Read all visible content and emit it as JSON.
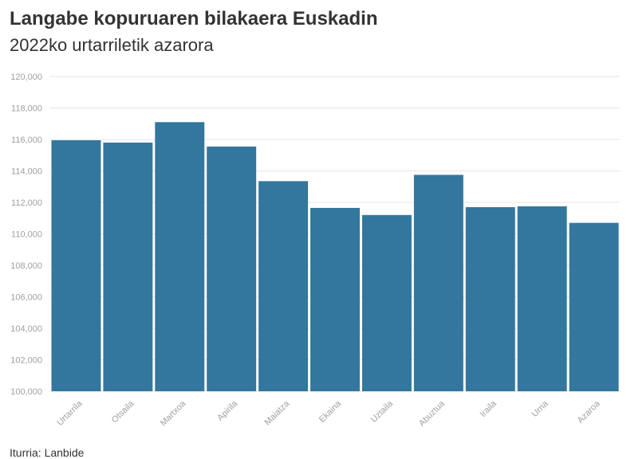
{
  "title": "Langabe kopuruaren bilakaera Euskadin",
  "subtitle": "2022ko urtarriletik azarora",
  "source": "Iturria: Lanbide",
  "colors": {
    "bar": "#33769e",
    "grid": "#e6e6e6",
    "tick": "#a0a0a0"
  },
  "chart_data": {
    "type": "bar",
    "title": "Langabe kopuruaren bilakaera Euskadin",
    "subtitle": "2022ko urtarriletik azarora",
    "xlabel": "",
    "ylabel": "",
    "ylim": [
      100000,
      120000
    ],
    "yticks": [
      100000,
      102000,
      104000,
      106000,
      108000,
      110000,
      112000,
      114000,
      116000,
      118000,
      120000
    ],
    "grid": true,
    "categories": [
      "Urtarrila",
      "Otsaila",
      "Martxoa",
      "Apirila",
      "Maiatza",
      "Ekaina",
      "Uztaila",
      "Abuztua",
      "Iraila",
      "Urria",
      "Azaroa"
    ],
    "values": [
      115950,
      115800,
      117100,
      115550,
      113350,
      111650,
      111200,
      113750,
      111700,
      111750,
      110700
    ]
  }
}
